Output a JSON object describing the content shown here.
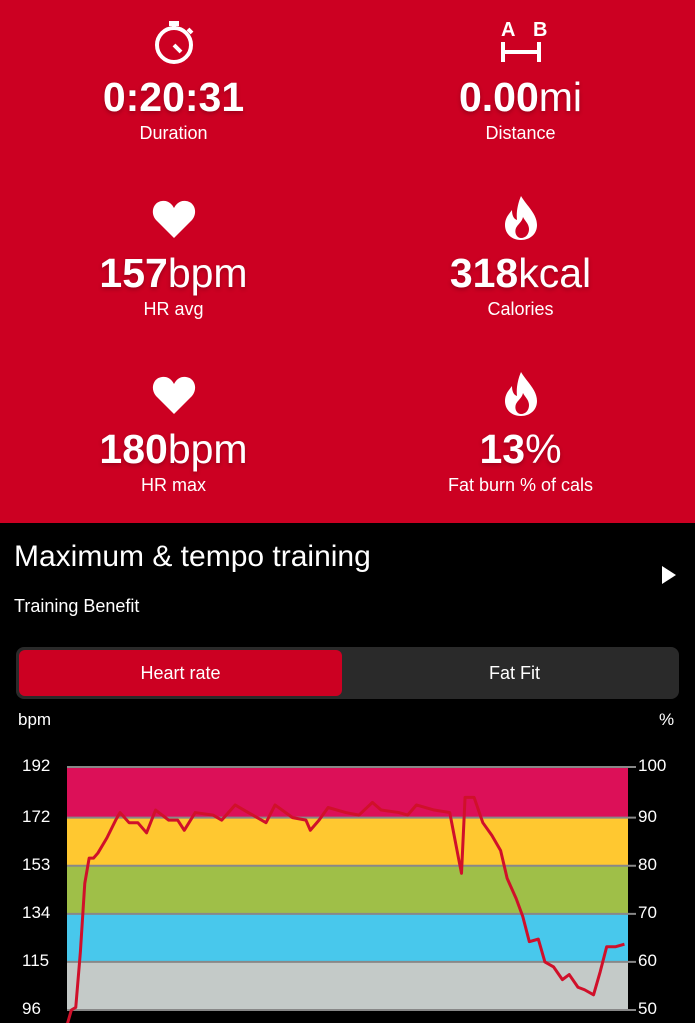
{
  "stats": [
    {
      "icon": "stopwatch-icon",
      "value": "0:20:31",
      "unit": "",
      "label": "Duration"
    },
    {
      "icon": "distance-ab-icon",
      "icon_text": [
        "A",
        "B"
      ],
      "value": "0.00",
      "unit": "mi",
      "label": "Distance"
    },
    {
      "icon": "heart-icon",
      "value": "157",
      "unit": "bpm",
      "label": "HR avg"
    },
    {
      "icon": "flame-icon",
      "value": "318",
      "unit": "kcal",
      "label": "Calories"
    },
    {
      "icon": "heart-icon",
      "value": "180",
      "unit": "bpm",
      "label": "HR max"
    },
    {
      "icon": "flame-icon",
      "value": "13",
      "unit": "%",
      "label": "Fat burn % of cals"
    }
  ],
  "training": {
    "title": "Maximum & tempo training",
    "subtitle": "Training Benefit"
  },
  "tabs": [
    {
      "label": "Heart rate",
      "selected": true
    },
    {
      "label": "Fat Fit",
      "selected": false
    }
  ],
  "colors": {
    "header": "#cc0022",
    "zone5": "#dc1058",
    "zone4": "#ffc830",
    "zone3": "#9fbf48",
    "zone2": "#48c8ec",
    "zone1": "#c4cac8",
    "line": "#d0102a"
  },
  "chart_data": {
    "type": "line",
    "left_axis_label": "bpm",
    "right_axis_label": "%",
    "left_ticks": [
      192,
      172,
      153,
      134,
      115,
      96
    ],
    "right_ticks": [
      100,
      90,
      80,
      70,
      60,
      50
    ],
    "ylim": [
      96,
      192
    ],
    "xlim_minutes": [
      0,
      20.52
    ],
    "zones": [
      [
        96,
        115
      ],
      [
        115,
        134
      ],
      [
        134,
        153
      ],
      [
        153,
        172
      ],
      [
        172,
        192
      ]
    ],
    "grid": true,
    "series": [
      {
        "x": [
          0,
          0.16,
          0.32,
          0.49,
          0.65,
          0.81,
          0.97,
          1.13,
          1.46,
          1.78,
          1.94,
          2.27,
          2.59,
          2.91,
          3.24,
          3.72,
          4.05,
          4.29,
          4.69,
          5.34,
          5.66,
          6.15,
          6.63,
          7.28,
          7.61,
          8.25,
          8.74,
          8.9,
          9.22,
          9.55,
          10.2,
          10.68,
          11.17,
          11.49,
          12.14,
          12.46,
          12.78,
          13.43,
          14.0,
          14.16,
          14.32,
          14.43,
          14.56,
          14.89,
          15.21,
          15.54,
          15.86,
          16.1,
          16.43,
          16.67,
          16.91,
          17.24,
          17.48,
          17.8,
          18.12,
          18.37,
          18.69,
          18.93,
          19.26,
          19.5,
          19.74,
          20.07,
          20.39
        ],
        "y": [
          90,
          96,
          97,
          119,
          146,
          156,
          156,
          158,
          164,
          171,
          174,
          170,
          170,
          166,
          175,
          171,
          171,
          167,
          174,
          173,
          171,
          177,
          174,
          170,
          177,
          172,
          171,
          167,
          171,
          176,
          174,
          173,
          178,
          175,
          174,
          173,
          177,
          175,
          174,
          165,
          156,
          150,
          180,
          180,
          170,
          165,
          159,
          148,
          140,
          133,
          123,
          124,
          115,
          113,
          108,
          110,
          105,
          104,
          102,
          111,
          121,
          121,
          122
        ]
      }
    ]
  }
}
